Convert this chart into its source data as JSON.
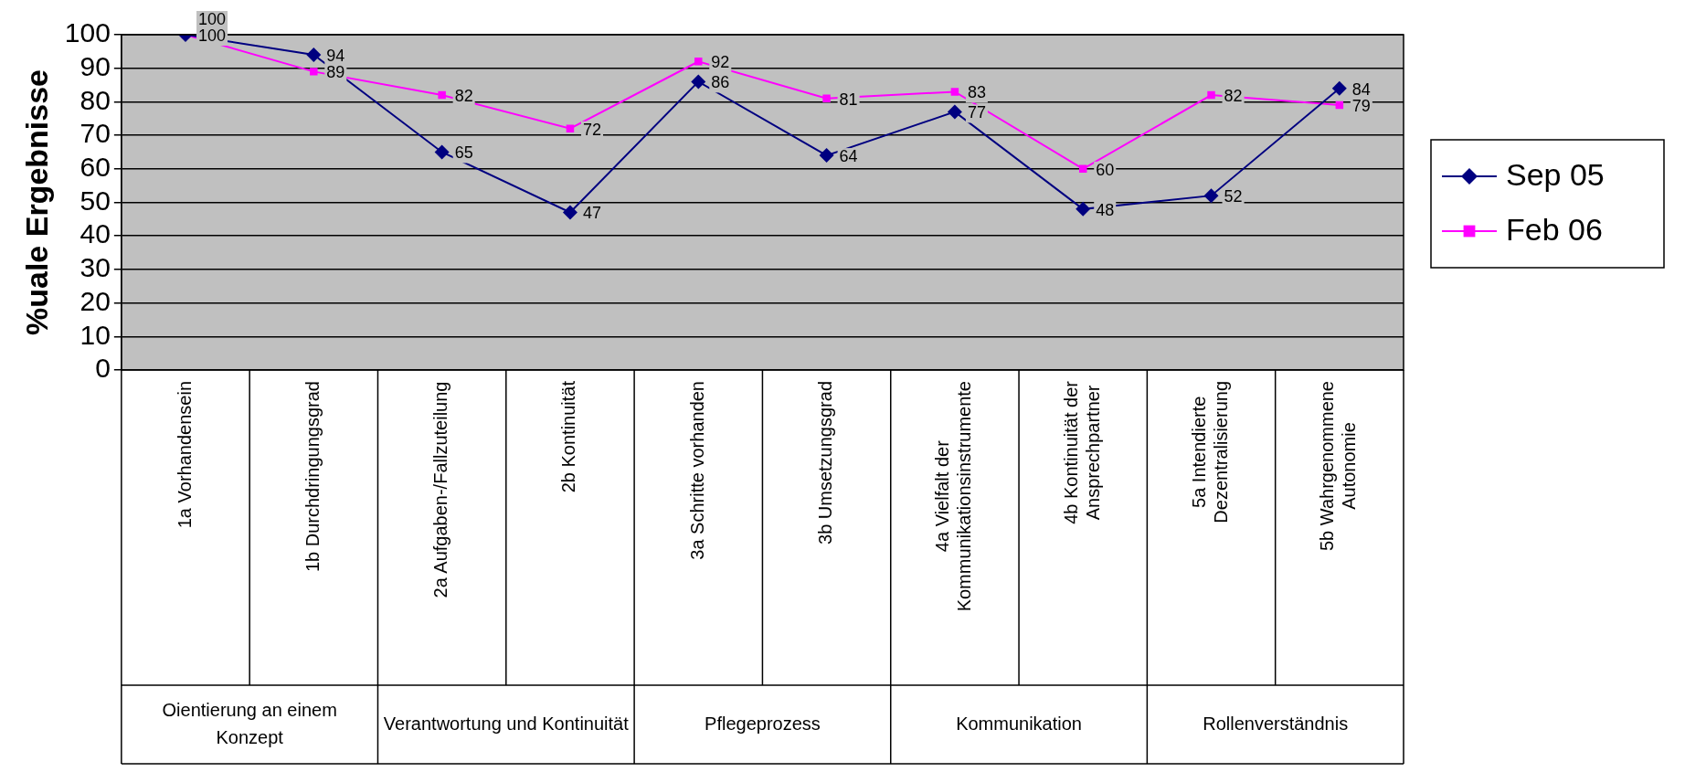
{
  "chart_data": {
    "type": "line",
    "ylabel": "%uale Ergebnisse",
    "categories": [
      "1a Vorhandensein",
      "1b Durchdringungsgrad",
      "2a Aufgaben-/Fallzuteilung",
      "2b Kontinuität",
      "3a Schritte vorhanden",
      "3b Umsetzungsgrad",
      "4a Vielfalt der Kommunikationsinstrumente",
      "4b Kontinuität der Ansprechpartner",
      "5a Intendierte Dezentralisierung",
      "5b Wahrgenommene Autonomie"
    ],
    "series": [
      {
        "name": "Sep 05",
        "color": "#000080",
        "marker": "diamond",
        "values": [
          100,
          94,
          65,
          47,
          86,
          64,
          77,
          48,
          52,
          84
        ]
      },
      {
        "name": "Feb 06",
        "color": "#ff00ff",
        "marker": "square",
        "values": [
          100,
          89,
          82,
          72,
          92,
          81,
          83,
          60,
          82,
          79
        ]
      }
    ],
    "annotations": [
      "Oientierung an einem Konzept",
      "Verantwortung und Kontinuität",
      "Pflegeprozess",
      "Kommunikation",
      "Rollenverständnis"
    ],
    "ylim": [
      0,
      100
    ],
    "yticks": [
      0,
      10,
      20,
      30,
      40,
      50,
      60,
      70,
      80,
      90,
      100
    ],
    "grid": "y",
    "legend": "right",
    "data_labels": true
  }
}
